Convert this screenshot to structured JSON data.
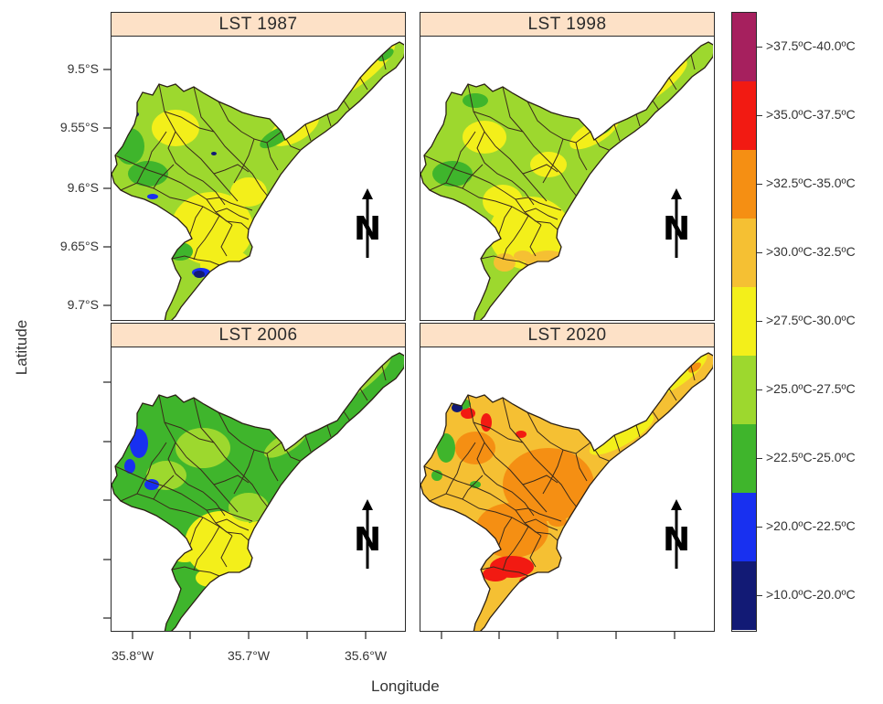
{
  "panels": [
    {
      "title": "LST  1987"
    },
    {
      "title": "LST  1998"
    },
    {
      "title": "LST  2006"
    },
    {
      "title": "LST  2020"
    }
  ],
  "axes": {
    "xlabel": "Longitude",
    "ylabel": "Latitude",
    "yticks": [
      "9.5°S",
      "9.55°S",
      "9.6°S",
      "9.65°S",
      "9.7°S"
    ],
    "xticks": [
      "35.8°W",
      "35.7°W",
      "35.6°W"
    ]
  },
  "legend": {
    "items": [
      {
        "label": ">37.5ºC-40.0ºC",
        "color": "#a6205e"
      },
      {
        "label": ">35.0ºC-37.5ºC",
        "color": "#f21a12"
      },
      {
        "label": ">32.5ºC-35.0ºC",
        "color": "#f58f13"
      },
      {
        "label": ">30.0ºC-32.5ºC",
        "color": "#f5c033"
      },
      {
        "label": ">27.5ºC-30.0ºC",
        "color": "#f3ef1a"
      },
      {
        "label": ">25.0ºC-27.5ºC",
        "color": "#9dd82e"
      },
      {
        "label": ">22.5ºC-25.0ºC",
        "color": "#3fb52c"
      },
      {
        "label": ">20.0ºC-22.5ºC",
        "color": "#1830f0"
      },
      {
        "label": ">10.0ºC-20.0ºC",
        "color": "#121a75"
      }
    ]
  },
  "north_arrow": {
    "label": "N"
  }
}
